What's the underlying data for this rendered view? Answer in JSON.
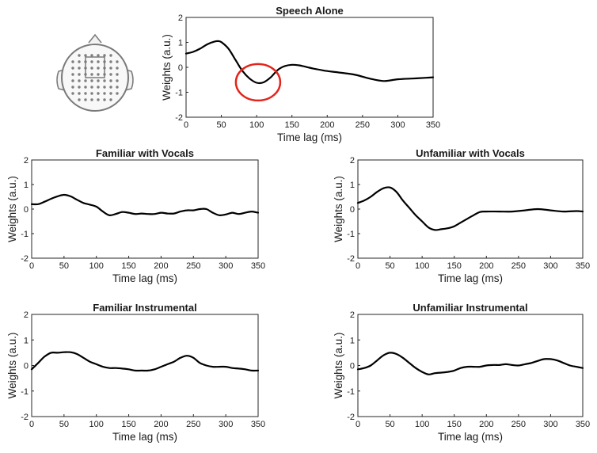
{
  "chart_data": [
    {
      "type": "line",
      "title": "Speech Alone",
      "xlabel": "Time lag (ms)",
      "ylabel": "Weights (a.u.)",
      "xlim": [
        0,
        350
      ],
      "ylim": [
        -2,
        2
      ],
      "xticks": [
        "0",
        "50",
        "100",
        "150",
        "200",
        "250",
        "300",
        "350"
      ],
      "yticks": [
        "2",
        "1",
        "0",
        "-1",
        "-2"
      ],
      "annotation": "red circle highlighting the minimum near 100 ms",
      "annotation_center": [
        102,
        -0.6
      ],
      "x": [
        0,
        10,
        20,
        30,
        40,
        45,
        50,
        60,
        70,
        80,
        90,
        100,
        110,
        120,
        130,
        140,
        150,
        160,
        170,
        180,
        190,
        200,
        220,
        240,
        260,
        280,
        300,
        320,
        340,
        350
      ],
      "y": [
        0.55,
        0.62,
        0.75,
        0.92,
        1.03,
        1.05,
        1.01,
        0.75,
        0.3,
        -0.15,
        -0.45,
        -0.62,
        -0.6,
        -0.4,
        -0.1,
        0.05,
        0.1,
        0.08,
        0.02,
        -0.05,
        -0.1,
        -0.15,
        -0.22,
        -0.3,
        -0.45,
        -0.55,
        -0.48,
        -0.45,
        -0.42,
        -0.4
      ]
    },
    {
      "type": "line",
      "title": "Familiar with Vocals",
      "xlabel": "Time lag (ms)",
      "ylabel": "Weights (a.u.)",
      "xlim": [
        0,
        350
      ],
      "ylim": [
        -2,
        2
      ],
      "xticks": [
        "0",
        "50",
        "100",
        "150",
        "200",
        "250",
        "300",
        "350"
      ],
      "yticks": [
        "2",
        "1",
        "0",
        "-1",
        "-2"
      ],
      "x": [
        0,
        10,
        20,
        30,
        40,
        50,
        60,
        70,
        80,
        90,
        100,
        110,
        120,
        130,
        140,
        150,
        160,
        170,
        180,
        190,
        200,
        210,
        220,
        230,
        240,
        250,
        260,
        270,
        280,
        290,
        300,
        310,
        320,
        330,
        340,
        350
      ],
      "y": [
        0.2,
        0.2,
        0.3,
        0.42,
        0.52,
        0.58,
        0.52,
        0.38,
        0.25,
        0.18,
        0.1,
        -0.1,
        -0.25,
        -0.2,
        -0.12,
        -0.15,
        -0.2,
        -0.18,
        -0.2,
        -0.2,
        -0.15,
        -0.18,
        -0.18,
        -0.1,
        -0.05,
        -0.05,
        0.0,
        0.0,
        -0.15,
        -0.25,
        -0.22,
        -0.15,
        -0.2,
        -0.15,
        -0.1,
        -0.15
      ]
    },
    {
      "type": "line",
      "title": "Unfamiliar with Vocals",
      "xlabel": "Time lag (ms)",
      "ylabel": "Weights (a.u.)",
      "xlim": [
        0,
        350
      ],
      "ylim": [
        -2,
        2
      ],
      "xticks": [
        "0",
        "50",
        "100",
        "150",
        "200",
        "250",
        "300",
        "350"
      ],
      "yticks": [
        "2",
        "1",
        "0",
        "-1",
        "-2"
      ],
      "x": [
        0,
        10,
        20,
        30,
        40,
        50,
        60,
        70,
        80,
        90,
        100,
        110,
        120,
        130,
        140,
        150,
        160,
        170,
        180,
        190,
        200,
        220,
        240,
        260,
        280,
        300,
        320,
        340,
        350
      ],
      "y": [
        0.25,
        0.35,
        0.5,
        0.7,
        0.85,
        0.88,
        0.7,
        0.35,
        0.05,
        -0.25,
        -0.5,
        -0.75,
        -0.85,
        -0.82,
        -0.78,
        -0.7,
        -0.55,
        -0.4,
        -0.25,
        -0.12,
        -0.1,
        -0.1,
        -0.1,
        -0.05,
        0.0,
        -0.05,
        -0.1,
        -0.08,
        -0.1
      ]
    },
    {
      "type": "line",
      "title": "Familiar Instrumental",
      "xlabel": "Time lag (ms)",
      "ylabel": "Weights (a.u.)",
      "xlim": [
        0,
        350
      ],
      "ylim": [
        -2,
        2
      ],
      "xticks": [
        "0",
        "50",
        "100",
        "150",
        "200",
        "250",
        "300",
        "350"
      ],
      "yticks": [
        "2",
        "1",
        "0",
        "-1",
        "-2"
      ],
      "x": [
        0,
        10,
        20,
        30,
        40,
        50,
        60,
        70,
        80,
        90,
        100,
        110,
        120,
        130,
        140,
        150,
        160,
        170,
        180,
        190,
        200,
        210,
        220,
        230,
        240,
        250,
        260,
        270,
        280,
        290,
        300,
        310,
        320,
        330,
        340,
        350
      ],
      "y": [
        -0.15,
        0.1,
        0.35,
        0.5,
        0.5,
        0.52,
        0.52,
        0.45,
        0.3,
        0.15,
        0.05,
        -0.05,
        -0.1,
        -0.1,
        -0.12,
        -0.15,
        -0.2,
        -0.2,
        -0.2,
        -0.15,
        -0.05,
        0.05,
        0.15,
        0.3,
        0.38,
        0.3,
        0.1,
        0.0,
        -0.05,
        -0.05,
        -0.05,
        -0.1,
        -0.12,
        -0.15,
        -0.2,
        -0.2
      ]
    },
    {
      "type": "line",
      "title": "Unfamiliar Instrumental",
      "xlabel": "Time lag (ms)",
      "ylabel": "Weights (a.u.)",
      "xlim": [
        0,
        350
      ],
      "ylim": [
        -2,
        2
      ],
      "xticks": [
        "0",
        "50",
        "100",
        "150",
        "200",
        "250",
        "300",
        "350"
      ],
      "yticks": [
        "2",
        "1",
        "0",
        "-1",
        "-2"
      ],
      "x": [
        0,
        10,
        20,
        30,
        40,
        50,
        60,
        70,
        80,
        90,
        100,
        110,
        120,
        130,
        140,
        150,
        160,
        170,
        180,
        190,
        200,
        210,
        220,
        230,
        240,
        250,
        260,
        270,
        280,
        290,
        300,
        310,
        320,
        330,
        340,
        350
      ],
      "y": [
        -0.15,
        -0.1,
        0.0,
        0.2,
        0.4,
        0.5,
        0.45,
        0.3,
        0.1,
        -0.1,
        -0.25,
        -0.35,
        -0.3,
        -0.28,
        -0.25,
        -0.2,
        -0.1,
        -0.05,
        -0.05,
        -0.05,
        0.0,
        0.02,
        0.02,
        0.05,
        0.02,
        0.0,
        0.05,
        0.1,
        0.18,
        0.25,
        0.25,
        0.2,
        0.1,
        0.0,
        -0.05,
        -0.1
      ]
    }
  ]
}
